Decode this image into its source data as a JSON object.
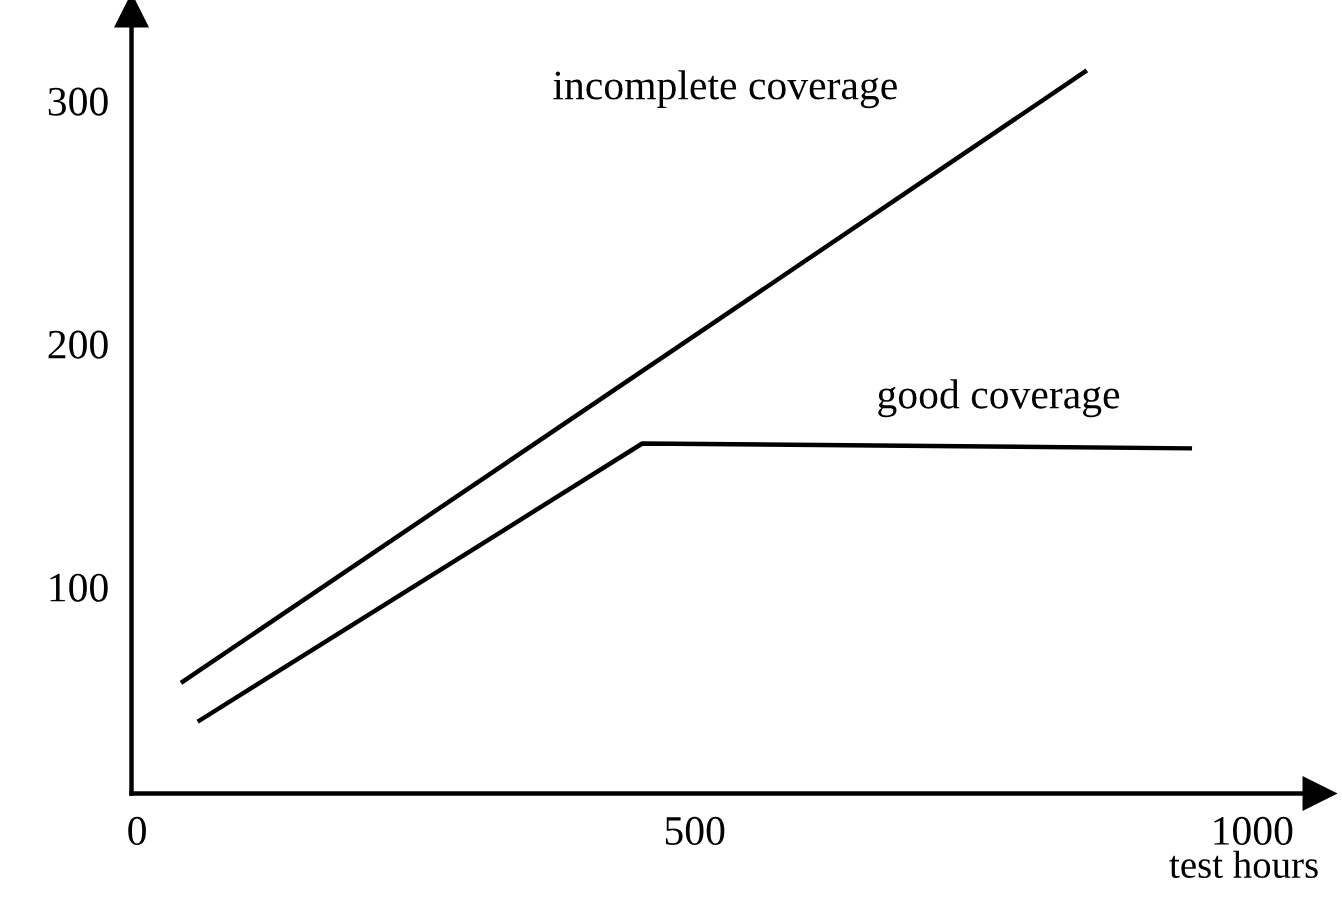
{
  "chart_data": {
    "type": "line",
    "xlabel": "test hours",
    "series": [
      {
        "name": "incomplete coverage",
        "color": "#000000",
        "x": [
          41,
          850
        ],
        "values": [
          61,
          312
        ]
      },
      {
        "name": "good coverage",
        "color": "#000000",
        "x": [
          56,
          453,
          944
        ],
        "values": [
          45,
          159,
          157
        ]
      }
    ],
    "xlim": [
      -5,
      1060
    ],
    "ylim": [
      15,
      337
    ],
    "xticks": [
      0,
      500,
      1000
    ],
    "yticks": [
      100,
      200,
      300
    ],
    "grid": false,
    "legend": false,
    "marker": "none",
    "line_style": "solid"
  }
}
